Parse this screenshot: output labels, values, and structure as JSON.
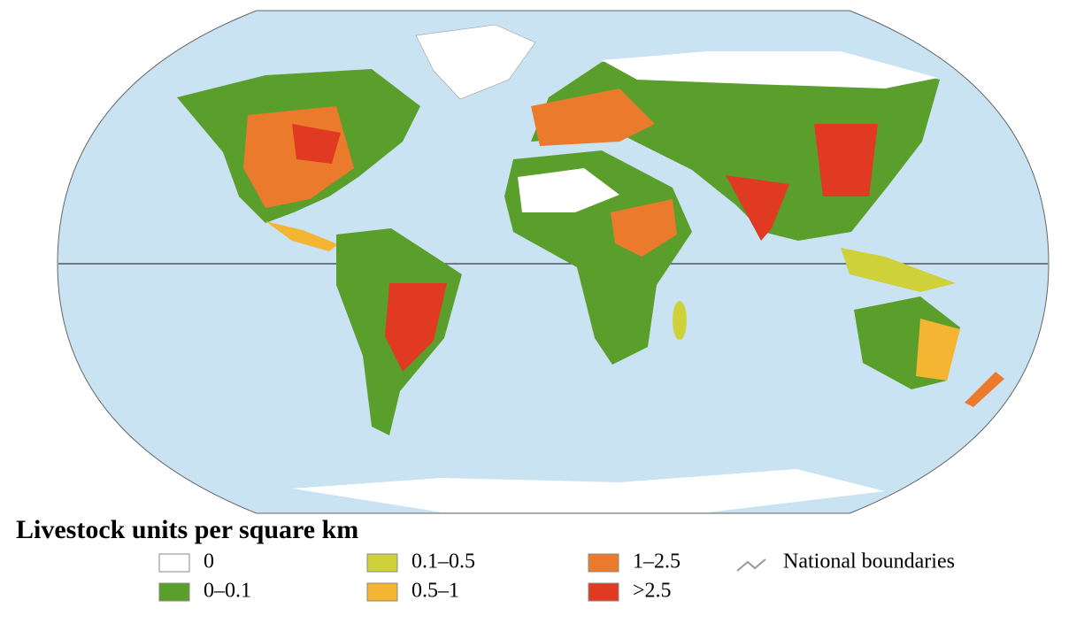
{
  "legend": {
    "title": "Livestock units per square km",
    "items": [
      {
        "label": "0",
        "color": "#ffffff"
      },
      {
        "label": "0–0.1",
        "color": "#5a9e2c"
      },
      {
        "label": "0.1–0.5",
        "color": "#cfd13a"
      },
      {
        "label": "0.5–1",
        "color": "#f3b532"
      },
      {
        "label": "1–2.5",
        "color": "#ec7a2c"
      },
      {
        "label": ">2.5",
        "color": "#e03a22"
      }
    ],
    "boundaries": "National boundaries"
  }
}
